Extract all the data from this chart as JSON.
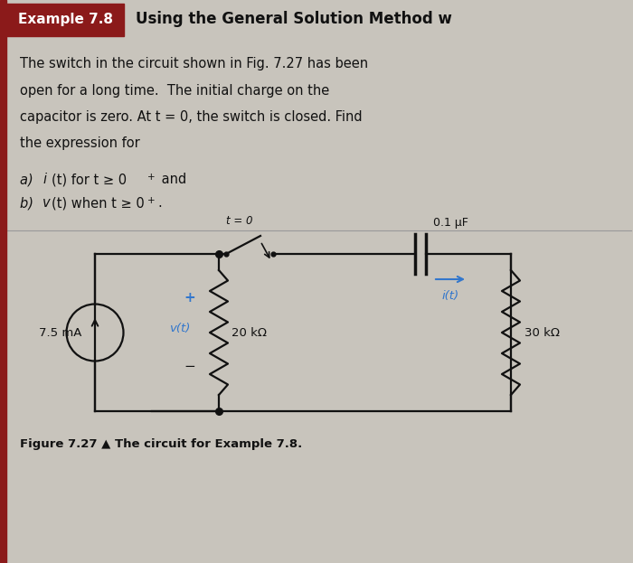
{
  "page_bg": "#c8c4bc",
  "header_bg": "#8B1A1A",
  "body_text_color": "#111111",
  "header_label": "Example 7.8",
  "header_title": "Using the General Solution Method w",
  "para_lines": [
    "The switch in the circuit shown in Fig. 7.27 has been",
    "open for a long time.  The initial charge on the",
    "capacitor is zero. At t = 0, the switch is closed. Find",
    "the expression for"
  ],
  "figure_caption": "Figure 7.27 ▲ The circuit for Example 7.8.",
  "source_label": "7.5 mA",
  "r1_value": "20 kΩ",
  "cap_label": "0.1 μF",
  "switch_label": "t = 0",
  "current_label": "i(t)",
  "r2_value": "30 kΩ",
  "blue_color": "#3377cc",
  "black": "#111111",
  "lw": 1.6
}
